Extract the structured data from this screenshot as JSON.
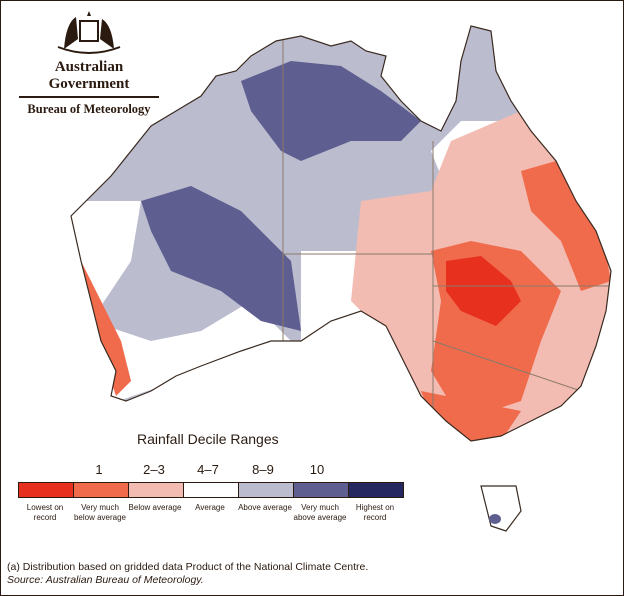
{
  "header": {
    "org": "Australian Government",
    "agency": "Bureau of Meteorology"
  },
  "legend": {
    "title": "Rainfall Decile Ranges",
    "deciles": [
      "1",
      "2–3",
      "4–7",
      "8–9",
      "10"
    ],
    "categories": [
      {
        "label": "Lowest on record",
        "color": "#e8301f"
      },
      {
        "label": "Very much below average",
        "color": "#f06b4c"
      },
      {
        "label": "Below average",
        "color": "#f2bcb3"
      },
      {
        "label": "Average",
        "color": "#ffffff"
      },
      {
        "label": "Above average",
        "color": "#bcbccf"
      },
      {
        "label": "Very much above average",
        "color": "#5e5f90"
      },
      {
        "label": "Highest on record",
        "color": "#262660"
      }
    ]
  },
  "footnote": {
    "note": "(a) Distribution based on gridded data Product of the National Climate Centre.",
    "source": "Source: Australian Bureau of Meteorology."
  }
}
